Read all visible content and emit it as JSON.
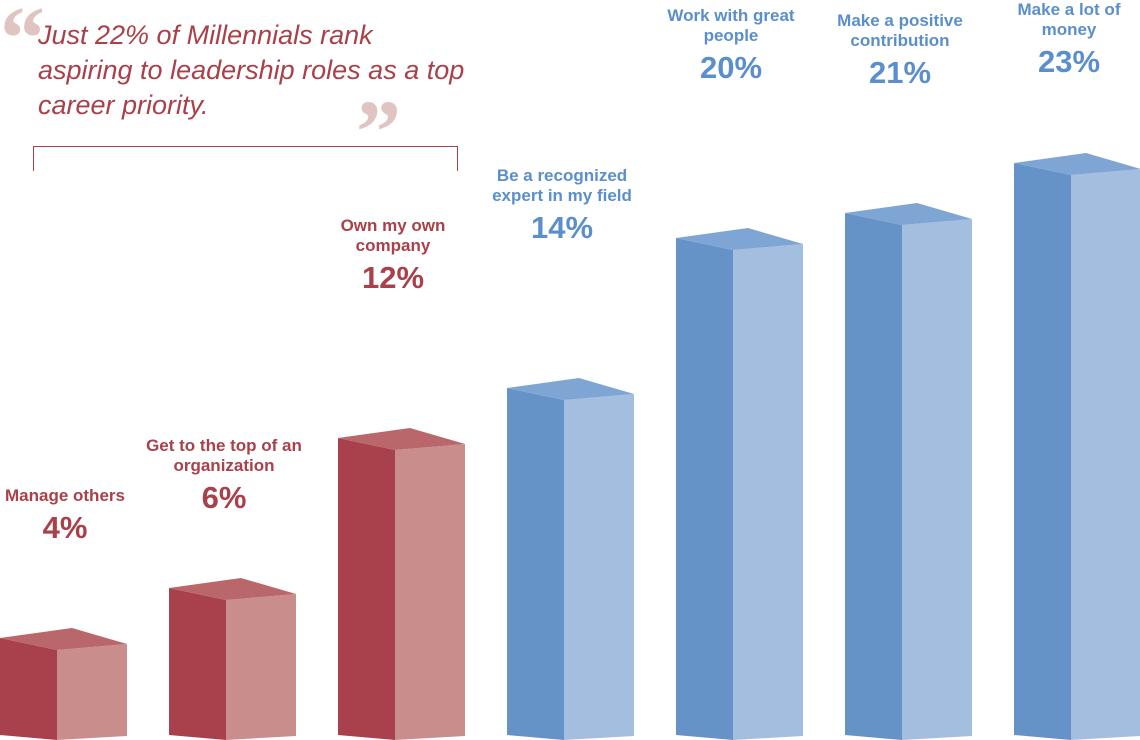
{
  "quote": {
    "text": "Just 22% of Millennials rank aspiring to leadership roles as a top career priority.",
    "open_mark": "“",
    "close_mark": "”"
  },
  "colors": {
    "red_left": "#a8414b",
    "red_right": "#c98e8c",
    "red_top": "#b9676a",
    "blue_left": "#6593c8",
    "blue_right": "#a4bee0",
    "blue_top": "#7ea5d4",
    "red_text": "#a9404a",
    "blue_text": "#5b8fcb"
  },
  "chart_data": {
    "type": "bar",
    "style": "3d-column infographic",
    "categories": [
      "Manage others",
      "Get to the top of an organization",
      "Own my own company",
      "Be a recognized expert in my field",
      "Work with great people",
      "Make a positive contribution",
      "Make a lot of money"
    ],
    "values": [
      4,
      6,
      12,
      14,
      20,
      21,
      23
    ],
    "value_labels": [
      "4%",
      "6%",
      "12%",
      "14%",
      "20%",
      "21%",
      "23%"
    ],
    "bar_colors": [
      "red",
      "red",
      "red",
      "blue",
      "blue",
      "blue",
      "blue"
    ],
    "unit": "%",
    "grid": false
  }
}
